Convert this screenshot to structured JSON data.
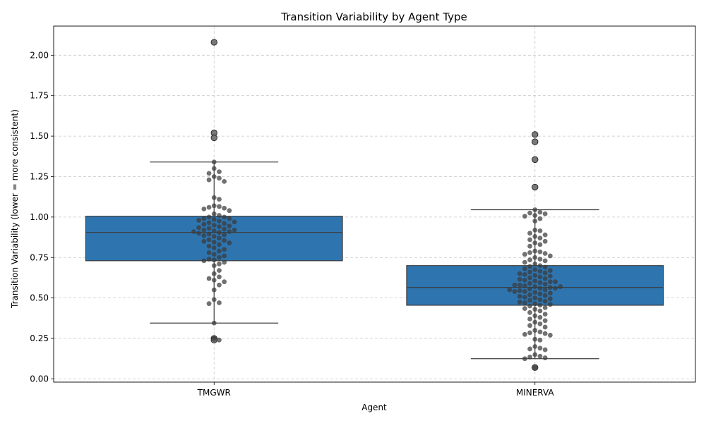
{
  "chart_data": {
    "type": "box",
    "title": "Transition Variability by Agent Type",
    "xlabel": "Agent",
    "ylabel": "Transition Variability (lower = more consistent)",
    "ylim": [
      -0.02,
      2.18
    ],
    "yticks": [
      0.0,
      0.25,
      0.5,
      0.75,
      1.0,
      1.25,
      1.5,
      1.75,
      2.0
    ],
    "ytick_labels": [
      "0.00",
      "0.25",
      "0.50",
      "0.75",
      "1.00",
      "1.25",
      "1.50",
      "1.75",
      "2.00"
    ],
    "categories": [
      "TMGWR",
      "MINERVA"
    ],
    "grid": true,
    "colors": {
      "box": "#2e75b0",
      "box_edge": "#3b3b3b",
      "point": "#3a3a3a",
      "grid": "#c8c8c8"
    },
    "series": [
      {
        "name": "TMGWR",
        "box": {
          "whisker_low": 0.345,
          "q1": 0.73,
          "median": 0.905,
          "q3": 1.005,
          "whisker_high": 1.34
        },
        "outliers": [
          2.08,
          1.52,
          1.49,
          0.25,
          0.24
        ],
        "points": [
          1.34,
          1.3,
          1.28,
          1.27,
          1.25,
          1.24,
          1.23,
          1.22,
          1.12,
          1.11,
          1.07,
          1.065,
          1.06,
          1.055,
          1.05,
          1.04,
          1.02,
          1.01,
          1.0,
          1.0,
          0.99,
          0.99,
          0.985,
          0.98,
          0.975,
          0.97,
          0.965,
          0.96,
          0.955,
          0.95,
          0.945,
          0.94,
          0.935,
          0.93,
          0.925,
          0.92,
          0.92,
          0.915,
          0.91,
          0.91,
          0.905,
          0.9,
          0.895,
          0.89,
          0.885,
          0.88,
          0.87,
          0.86,
          0.855,
          0.85,
          0.845,
          0.84,
          0.83,
          0.82,
          0.81,
          0.8,
          0.79,
          0.78,
          0.77,
          0.76,
          0.75,
          0.74,
          0.735,
          0.73,
          0.72,
          0.71,
          0.7,
          0.67,
          0.65,
          0.63,
          0.62,
          0.61,
          0.6,
          0.58,
          0.55,
          0.49,
          0.47,
          0.465,
          0.345,
          0.25,
          0.24
        ]
      },
      {
        "name": "MINERVA",
        "box": {
          "whisker_low": 0.125,
          "q1": 0.455,
          "median": 0.565,
          "q3": 0.7,
          "whisker_high": 1.045
        },
        "outliers": [
          1.51,
          1.465,
          1.355,
          1.185,
          0.07
        ],
        "points": [
          1.045,
          1.03,
          1.025,
          1.02,
          1.01,
          1.005,
          0.99,
          0.975,
          0.92,
          0.915,
          0.9,
          0.89,
          0.88,
          0.87,
          0.86,
          0.85,
          0.84,
          0.83,
          0.82,
          0.79,
          0.785,
          0.78,
          0.775,
          0.77,
          0.76,
          0.75,
          0.74,
          0.735,
          0.73,
          0.72,
          0.71,
          0.7,
          0.695,
          0.69,
          0.68,
          0.675,
          0.67,
          0.665,
          0.66,
          0.655,
          0.65,
          0.645,
          0.64,
          0.635,
          0.63,
          0.625,
          0.62,
          0.615,
          0.61,
          0.605,
          0.6,
          0.6,
          0.595,
          0.59,
          0.585,
          0.58,
          0.58,
          0.575,
          0.57,
          0.57,
          0.565,
          0.56,
          0.56,
          0.555,
          0.55,
          0.55,
          0.545,
          0.54,
          0.54,
          0.535,
          0.53,
          0.525,
          0.52,
          0.515,
          0.51,
          0.505,
          0.5,
          0.495,
          0.49,
          0.485,
          0.48,
          0.475,
          0.47,
          0.465,
          0.46,
          0.455,
          0.45,
          0.44,
          0.435,
          0.43,
          0.42,
          0.41,
          0.4,
          0.39,
          0.38,
          0.37,
          0.36,
          0.35,
          0.34,
          0.33,
          0.32,
          0.3,
          0.29,
          0.285,
          0.28,
          0.275,
          0.27,
          0.245,
          0.24,
          0.2,
          0.19,
          0.185,
          0.18,
          0.15,
          0.14,
          0.135,
          0.13,
          0.125,
          0.07
        ]
      }
    ]
  }
}
